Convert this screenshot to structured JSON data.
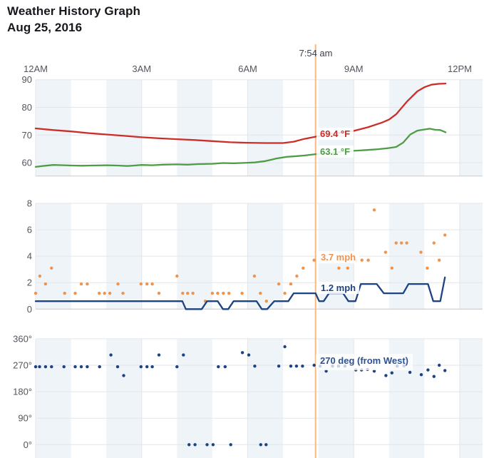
{
  "header": {
    "title": "Weather History Graph",
    "date": "Aug 25, 2016"
  },
  "readout": {
    "time": "7:54 am",
    "hour": 7.92,
    "temperature": "69.4 °F",
    "dew_point": "63.1 °F",
    "gust": "3.7 mph",
    "wind_speed": "1.2 mph",
    "wind_direction": "270 deg (from West)"
  },
  "colors": {
    "temperature": "#cb2e28",
    "dew_point": "#4f9c46",
    "wind": "#1d4382",
    "gust": "#f0944d",
    "readout_line": "#f8b87e",
    "band": "#eff4f9",
    "grid": "#e4e5e9",
    "axis": "#c9cbce",
    "tick_text": "#55555e",
    "title_text": "#17171d",
    "time_text": "#3f3f48",
    "direction_text": "#2d5293"
  },
  "x_axis": {
    "ticks": [
      {
        "label": "12AM",
        "hour": 0
      },
      {
        "label": "3AM",
        "hour": 3
      },
      {
        "label": "6AM",
        "hour": 6
      },
      {
        "label": "9AM",
        "hour": 9
      },
      {
        "label": "12PM",
        "hour": 12
      }
    ],
    "band_hours": [
      0,
      2,
      4,
      6,
      8,
      10,
      12
    ],
    "gridline_hours": [
      0,
      3,
      6,
      9,
      12
    ]
  },
  "chart_data": [
    {
      "type": "line",
      "name": "temperature_dew_point",
      "ylabel": "°F",
      "ylim": [
        55.2,
        90
      ],
      "yticks": [
        {
          "v": 90,
          "label": "90"
        },
        {
          "v": 80,
          "label": "80"
        },
        {
          "v": 70,
          "label": "70"
        },
        {
          "v": 60,
          "label": "60"
        }
      ],
      "series": [
        {
          "name": "temperature",
          "style": "line",
          "color": "#cb2e28",
          "points": [
            [
              0,
              72.4
            ],
            [
              0.5,
              71.8
            ],
            [
              1,
              71.3
            ],
            [
              1.5,
              70.7
            ],
            [
              2,
              70.2
            ],
            [
              2.5,
              69.7
            ],
            [
              3,
              69.2
            ],
            [
              3.5,
              68.8
            ],
            [
              4,
              68.5
            ],
            [
              4.5,
              68.2
            ],
            [
              5,
              67.8
            ],
            [
              5.5,
              67.4
            ],
            [
              6,
              67.2
            ],
            [
              6.5,
              67.1
            ],
            [
              7,
              67.1
            ],
            [
              7.3,
              67.6
            ],
            [
              7.6,
              68.6
            ],
            [
              7.92,
              69.4
            ],
            [
              8.3,
              70.3
            ],
            [
              8.7,
              71.0
            ],
            [
              9,
              71.5
            ],
            [
              9.4,
              72.8
            ],
            [
              9.8,
              74.5
            ],
            [
              10,
              75.6
            ],
            [
              10.2,
              77.5
            ],
            [
              10.5,
              82.0
            ],
            [
              10.8,
              85.8
            ],
            [
              11,
              87.3
            ],
            [
              11.2,
              88.2
            ],
            [
              11.4,
              88.5
            ],
            [
              11.6,
              88.6
            ]
          ]
        },
        {
          "name": "dew_point",
          "style": "line",
          "color": "#4f9c46",
          "points": [
            [
              0,
              58.5
            ],
            [
              0.2,
              58.8
            ],
            [
              0.5,
              59.2
            ],
            [
              0.8,
              59.1
            ],
            [
              1,
              59.0
            ],
            [
              1.3,
              58.9
            ],
            [
              1.6,
              59.0
            ],
            [
              2,
              59.1
            ],
            [
              2.3,
              59.0
            ],
            [
              2.6,
              58.8
            ],
            [
              2.8,
              59.0
            ],
            [
              3,
              59.2
            ],
            [
              3.3,
              59.1
            ],
            [
              3.6,
              59.3
            ],
            [
              4,
              59.4
            ],
            [
              4.3,
              59.3
            ],
            [
              4.6,
              59.5
            ],
            [
              5,
              59.6
            ],
            [
              5.3,
              59.9
            ],
            [
              5.6,
              59.8
            ],
            [
              6,
              60.0
            ],
            [
              6.2,
              60.1
            ],
            [
              6.5,
              60.6
            ],
            [
              6.8,
              61.5
            ],
            [
              7.1,
              62.1
            ],
            [
              7.4,
              62.4
            ],
            [
              7.6,
              62.6
            ],
            [
              7.92,
              63.1
            ],
            [
              8.2,
              63.5
            ],
            [
              8.6,
              63.9
            ],
            [
              9,
              64.3
            ],
            [
              9.4,
              64.6
            ],
            [
              9.7,
              64.9
            ],
            [
              10,
              65.3
            ],
            [
              10.2,
              65.7
            ],
            [
              10.4,
              67.3
            ],
            [
              10.6,
              70.2
            ],
            [
              10.8,
              71.6
            ],
            [
              11,
              72.0
            ],
            [
              11.15,
              72.3
            ],
            [
              11.3,
              71.9
            ],
            [
              11.45,
              71.8
            ],
            [
              11.6,
              71.0
            ]
          ]
        }
      ]
    },
    {
      "type": "line_scatter",
      "name": "wind_speed_mph",
      "ylabel": "mph",
      "ylim": [
        0,
        8
      ],
      "yticks": [
        {
          "v": 8,
          "label": "8"
        },
        {
          "v": 6,
          "label": "6"
        },
        {
          "v": 4,
          "label": "4"
        },
        {
          "v": 2,
          "label": "2"
        },
        {
          "v": 0,
          "label": "0"
        }
      ],
      "series": [
        {
          "name": "wind_gust",
          "style": "scatter",
          "color": "#f0944d",
          "points": [
            [
              0,
              1.2
            ],
            [
              0.12,
              2.5
            ],
            [
              0.28,
              1.9
            ],
            [
              0.45,
              3.1
            ],
            [
              0.82,
              1.2
            ],
            [
              1.12,
              1.2
            ],
            [
              1.29,
              1.9
            ],
            [
              1.46,
              1.9
            ],
            [
              1.8,
              1.2
            ],
            [
              1.95,
              1.2
            ],
            [
              2.1,
              1.2
            ],
            [
              2.33,
              1.9
            ],
            [
              2.47,
              1.2
            ],
            [
              2.98,
              1.9
            ],
            [
              3.15,
              1.9
            ],
            [
              3.3,
              1.9
            ],
            [
              3.49,
              1.2
            ],
            [
              4.0,
              2.5
            ],
            [
              4.16,
              1.2
            ],
            [
              4.3,
              1.2
            ],
            [
              4.45,
              1.2
            ],
            [
              4.8,
              0.6
            ],
            [
              5.0,
              1.2
            ],
            [
              5.15,
              1.2
            ],
            [
              5.31,
              1.2
            ],
            [
              5.47,
              1.2
            ],
            [
              5.84,
              1.2
            ],
            [
              6.19,
              2.5
            ],
            [
              6.36,
              1.2
            ],
            [
              6.53,
              0.6
            ],
            [
              6.88,
              1.9
            ],
            [
              7.05,
              1.2
            ],
            [
              7.22,
              1.9
            ],
            [
              7.39,
              2.5
            ],
            [
              7.57,
              3.1
            ],
            [
              7.88,
              3.7
            ],
            [
              8.25,
              3.7
            ],
            [
              8.58,
              3.1
            ],
            [
              8.83,
              3.1
            ],
            [
              9.06,
              3.7
            ],
            [
              9.23,
              3.7
            ],
            [
              9.41,
              3.7
            ],
            [
              9.58,
              7.5
            ],
            [
              9.9,
              4.3
            ],
            [
              10.08,
              3.1
            ],
            [
              10.2,
              5.0
            ],
            [
              10.35,
              5.0
            ],
            [
              10.5,
              5.0
            ],
            [
              10.9,
              4.3
            ],
            [
              11.08,
              3.1
            ],
            [
              11.27,
              5.0
            ],
            [
              11.42,
              3.7
            ],
            [
              11.58,
              5.6
            ]
          ]
        },
        {
          "name": "wind_speed",
          "style": "line",
          "color": "#1d4382",
          "points": [
            [
              0,
              0.6
            ],
            [
              4.15,
              0.6
            ],
            [
              4.25,
              0
            ],
            [
              4.7,
              0
            ],
            [
              4.85,
              0.6
            ],
            [
              5.15,
              0.6
            ],
            [
              5.3,
              0
            ],
            [
              5.45,
              0
            ],
            [
              5.6,
              0.6
            ],
            [
              6.25,
              0.6
            ],
            [
              6.4,
              0
            ],
            [
              6.55,
              0
            ],
            [
              6.75,
              0.6
            ],
            [
              7.15,
              0.6
            ],
            [
              7.3,
              1.2
            ],
            [
              7.92,
              1.2
            ],
            [
              8.02,
              0.6
            ],
            [
              8.15,
              0.6
            ],
            [
              8.3,
              1.2
            ],
            [
              8.7,
              1.2
            ],
            [
              8.85,
              0.6
            ],
            [
              9.05,
              0.6
            ],
            [
              9.2,
              1.9
            ],
            [
              9.65,
              1.9
            ],
            [
              9.85,
              1.2
            ],
            [
              10.4,
              1.2
            ],
            [
              10.55,
              1.9
            ],
            [
              11.1,
              1.9
            ],
            [
              11.25,
              0.6
            ],
            [
              11.45,
              0.6
            ],
            [
              11.58,
              2.4
            ]
          ]
        }
      ]
    },
    {
      "type": "scatter",
      "name": "wind_direction_deg",
      "ylabel": "deg",
      "ylim": [
        -45.4,
        360
      ],
      "yticks": [
        {
          "v": 360,
          "label": "360°"
        },
        {
          "v": 270,
          "label": "270°"
        },
        {
          "v": 180,
          "label": "180°"
        },
        {
          "v": 90,
          "label": "90°"
        },
        {
          "v": 0,
          "label": "0°"
        }
      ],
      "series": [
        {
          "name": "wind_direction",
          "style": "scatter",
          "color": "#1d4382",
          "points": [
            [
              0,
              265
            ],
            [
              0.11,
              265
            ],
            [
              0.28,
              265
            ],
            [
              0.45,
              265
            ],
            [
              0.8,
              265
            ],
            [
              1.12,
              265
            ],
            [
              1.29,
              265
            ],
            [
              1.46,
              265
            ],
            [
              1.81,
              265
            ],
            [
              2.13,
              305
            ],
            [
              2.32,
              265
            ],
            [
              2.49,
              235
            ],
            [
              2.98,
              265
            ],
            [
              3.15,
              265
            ],
            [
              3.3,
              265
            ],
            [
              3.49,
              305
            ],
            [
              4.0,
              265
            ],
            [
              4.18,
              305
            ],
            [
              4.34,
              0
            ],
            [
              4.51,
              0
            ],
            [
              4.85,
              0
            ],
            [
              5.02,
              0
            ],
            [
              5.17,
              265
            ],
            [
              5.36,
              265
            ],
            [
              5.52,
              0
            ],
            [
              5.85,
              313
            ],
            [
              6.03,
              305
            ],
            [
              6.2,
              267
            ],
            [
              6.37,
              0
            ],
            [
              6.52,
              0
            ],
            [
              6.88,
              267
            ],
            [
              7.05,
              333
            ],
            [
              7.22,
              267
            ],
            [
              7.38,
              267
            ],
            [
              7.55,
              267
            ],
            [
              7.88,
              270
            ],
            [
              8.05,
              267
            ],
            [
              8.22,
              250
            ],
            [
              8.4,
              267
            ],
            [
              8.57,
              267
            ],
            [
              8.75,
              267
            ],
            [
              9.06,
              254
            ],
            [
              9.22,
              254
            ],
            [
              9.39,
              256
            ],
            [
              9.58,
              250
            ],
            [
              9.91,
              235
            ],
            [
              10.08,
              244
            ],
            [
              10.23,
              267
            ],
            [
              10.42,
              268
            ],
            [
              10.59,
              246
            ],
            [
              10.91,
              238
            ],
            [
              11.1,
              254
            ],
            [
              11.27,
              232
            ],
            [
              11.42,
              270
            ],
            [
              11.58,
              252
            ]
          ]
        }
      ]
    }
  ]
}
